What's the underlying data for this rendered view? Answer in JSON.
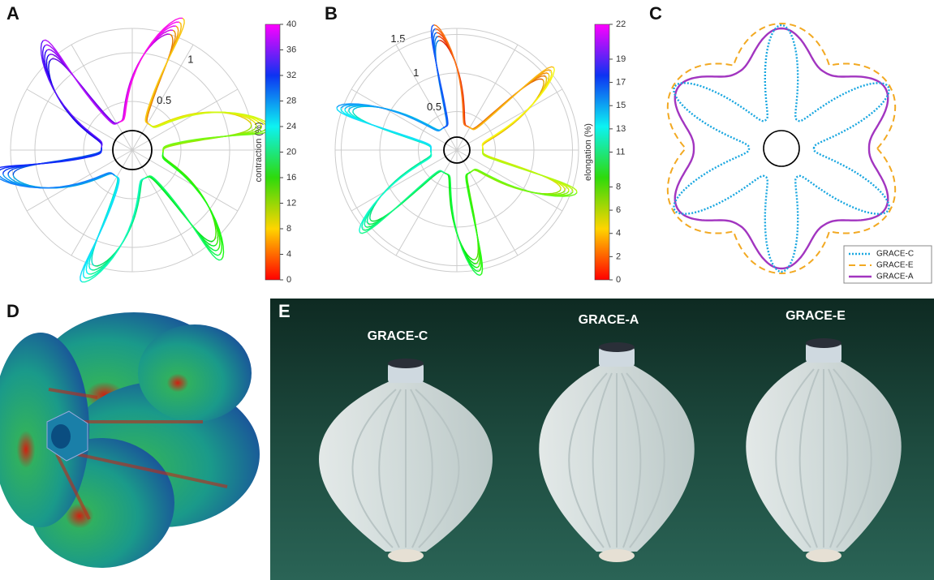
{
  "panels": {
    "A": {
      "label": "A",
      "rticks": [
        0.5,
        1
      ],
      "colorbar": {
        "label": "contraction (%)",
        "lim": [
          0,
          40
        ],
        "ticks": [
          0,
          4,
          8,
          12,
          16,
          20,
          24,
          28,
          32,
          36,
          40
        ]
      }
    },
    "B": {
      "label": "B",
      "rticks": [
        0.5,
        1,
        1.5
      ],
      "colorbar": {
        "label": "elongation (%)",
        "lim": [
          0,
          22
        ],
        "ticks": [
          0,
          2,
          4,
          6,
          8,
          11,
          13,
          15,
          17,
          19,
          22
        ]
      }
    },
    "C": {
      "label": "C",
      "legend": [
        "GRACE-C",
        "GRACE-E",
        "GRACE-A"
      ]
    },
    "D": {
      "label": "D"
    },
    "E": {
      "label": "E",
      "captions": [
        "GRACE-C",
        "GRACE-A",
        "GRACE-E"
      ]
    }
  }
}
